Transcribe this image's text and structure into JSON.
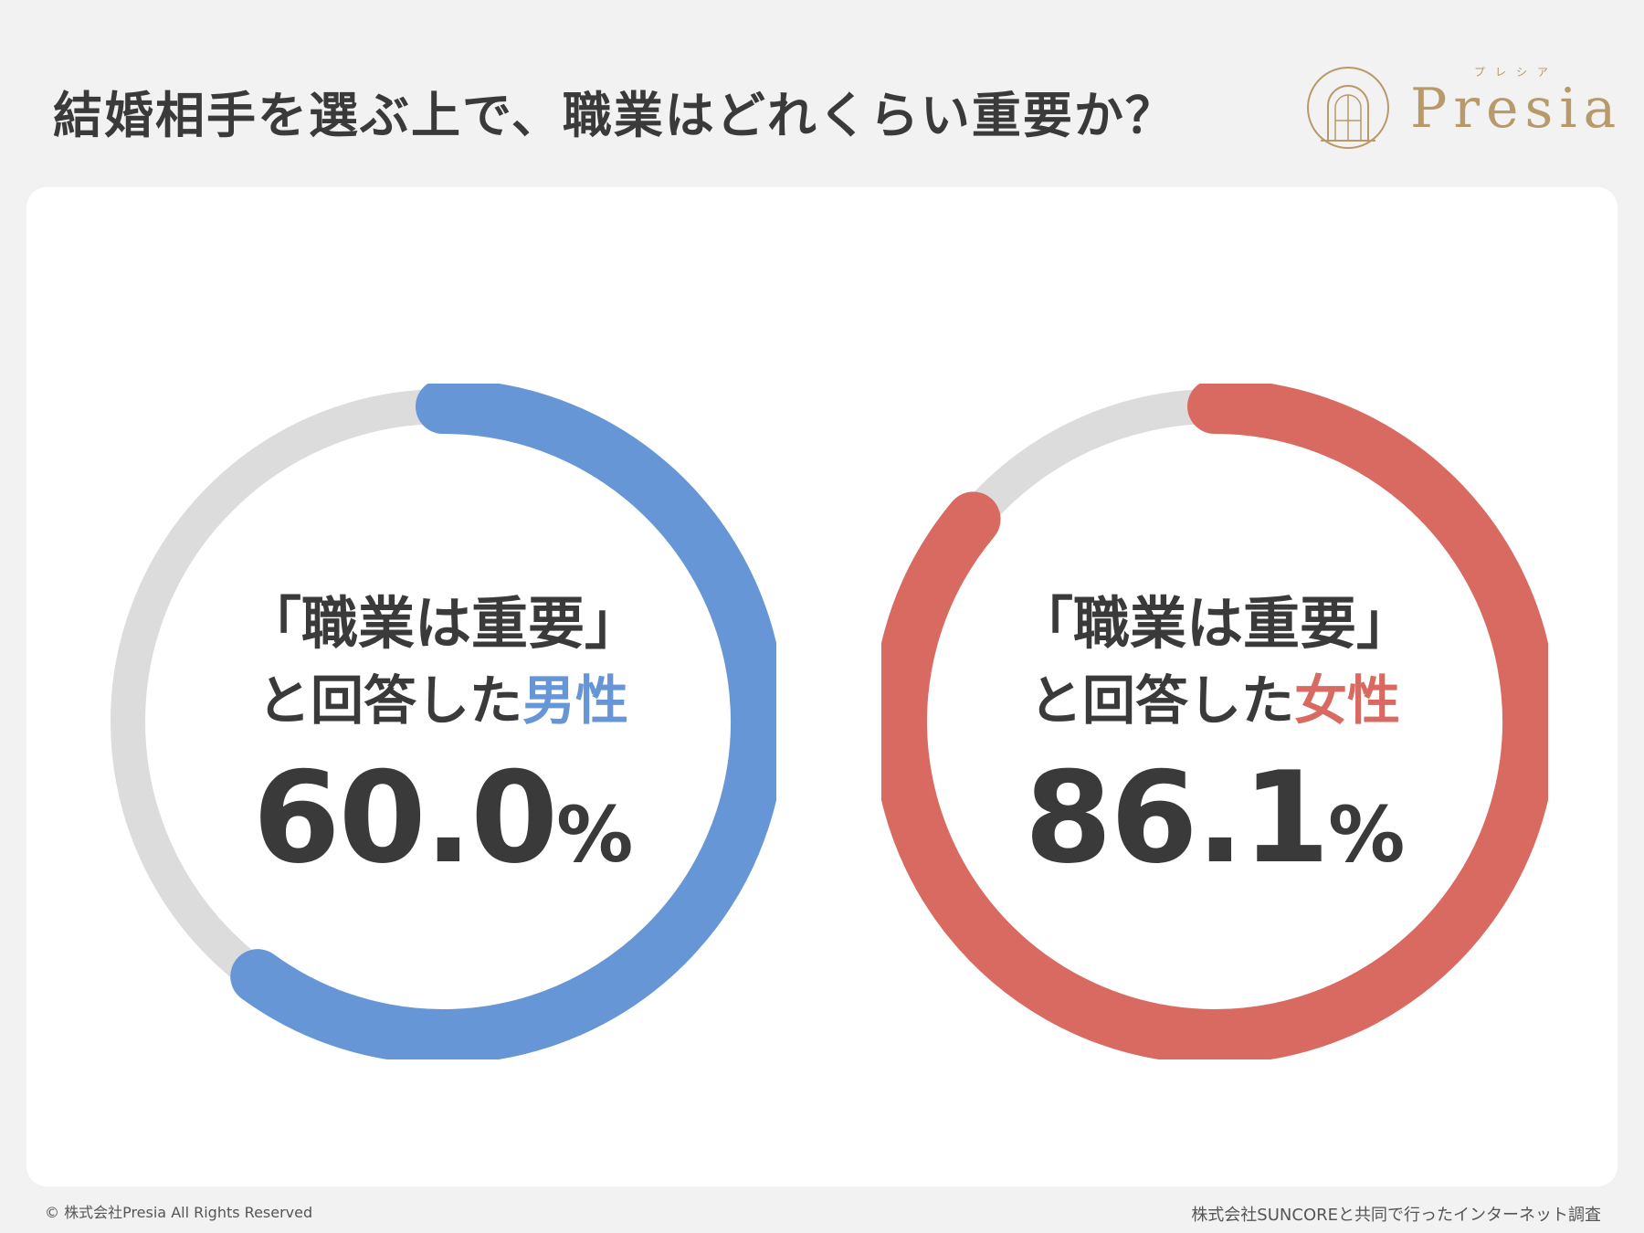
{
  "title": "結婚相手を選ぶ上で、職業はどれくらい重要か？",
  "logo": {
    "text": "Presia",
    "subtext": "プレシア"
  },
  "chart_data": [
    {
      "type": "pie",
      "series_name": "男性",
      "value": 60.0,
      "value_text": "60.0",
      "unit": "%",
      "label_line1": "「職業は重要」",
      "label_line2_prefix": "と回答した",
      "label_line2_accent": "男性",
      "color": "#6696d6",
      "track_color": "#dcdcdc"
    },
    {
      "type": "pie",
      "series_name": "女性",
      "value": 86.1,
      "value_text": "86.1",
      "unit": "%",
      "label_line1": "「職業は重要」",
      "label_line2_prefix": "と回答した",
      "label_line2_accent": "女性",
      "color": "#d96a61",
      "track_color": "#dcdcdc"
    }
  ],
  "footer": {
    "copyright": "© 株式会社Presia All Rights Reserved",
    "source": "株式会社SUNCOREと共同で行ったインターネット調査"
  }
}
